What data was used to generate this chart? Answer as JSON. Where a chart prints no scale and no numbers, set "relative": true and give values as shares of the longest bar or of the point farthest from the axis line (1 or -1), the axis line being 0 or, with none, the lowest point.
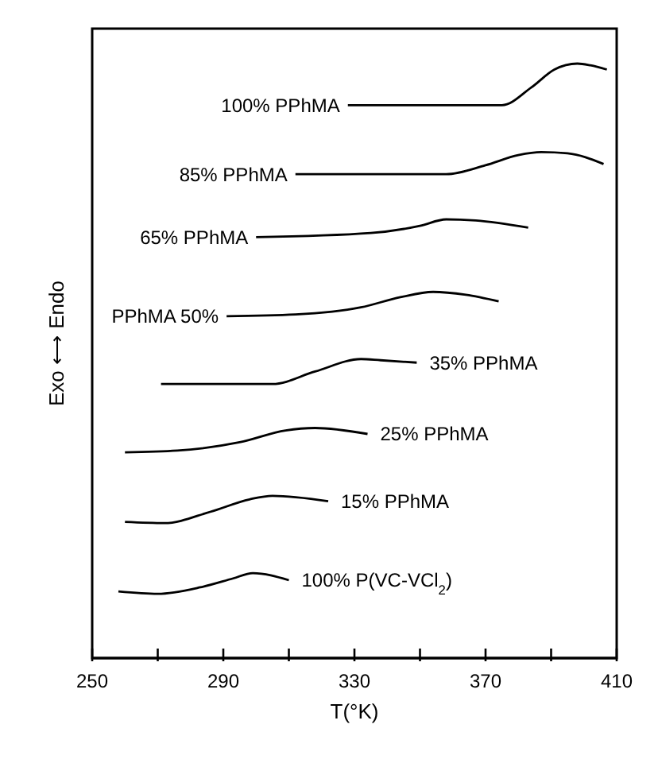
{
  "chart_data": {
    "type": "line",
    "relative": true,
    "xlabel": "T(°K)",
    "ylabel": "Exo ⟷ Endo",
    "xlim": [
      250,
      410
    ],
    "xticks": [
      250,
      {
        "value": 270,
        "label": null
      },
      290,
      {
        "value": 310,
        "label": null
      },
      330,
      {
        "value": 350,
        "label": null
      },
      370,
      {
        "value": 390,
        "label": null
      },
      410
    ],
    "series": [
      {
        "name": "100% PPhMA",
        "color": "#000000",
        "x": [
          328,
          375,
          384,
          391,
          398,
          402,
          407
        ],
        "values": [
          0.93,
          0.93,
          0.96,
          0.99,
          1,
          0.997,
          0.99
        ]
      },
      {
        "name": "85% PPhMA",
        "color": "#000000",
        "x": [
          312,
          358,
          370,
          380,
          387,
          395,
          406
        ],
        "values": [
          0.814,
          0.814,
          0.829,
          0.846,
          0.851,
          0.849,
          0.831
        ]
      },
      {
        "name": "65% PPhMA",
        "color": "#000000",
        "x": [
          300,
          335,
          350,
          358,
          367,
          383
        ],
        "values": [
          0.708,
          0.715,
          0.727,
          0.738,
          0.736,
          0.724
        ]
      },
      {
        "name": "PPhMA 50%",
        "color": "#000000",
        "x": [
          291,
          312,
          332,
          344,
          354,
          364,
          374
        ],
        "values": [
          0.575,
          0.578,
          0.59,
          0.607,
          0.616,
          0.611,
          0.6
        ]
      },
      {
        "name": "35% PPhMA",
        "color": "#000000",
        "x": [
          271,
          305,
          318,
          332,
          338,
          349
        ],
        "values": [
          0.461,
          0.461,
          0.482,
          0.503,
          0.501,
          0.497
        ]
      },
      {
        "name": "25% PPhMA",
        "color": "#000000",
        "x": [
          260,
          276,
          295,
          309,
          318,
          334
        ],
        "values": [
          0.346,
          0.349,
          0.363,
          0.383,
          0.387,
          0.377
        ]
      },
      {
        "name": "15% PPhMA",
        "color": "#000000",
        "x": [
          260,
          272,
          286,
          298,
          305,
          322
        ],
        "values": [
          0.229,
          0.227,
          0.246,
          0.267,
          0.273,
          0.264
        ]
      },
      {
        "name": "100% P(VC-VCl$_{2}$)",
        "color": "#000000",
        "x": [
          258,
          270,
          283,
          293,
          299,
          310
        ],
        "values": [
          0.112,
          0.108,
          0.119,
          0.134,
          0.143,
          0.131
        ]
      }
    ]
  }
}
